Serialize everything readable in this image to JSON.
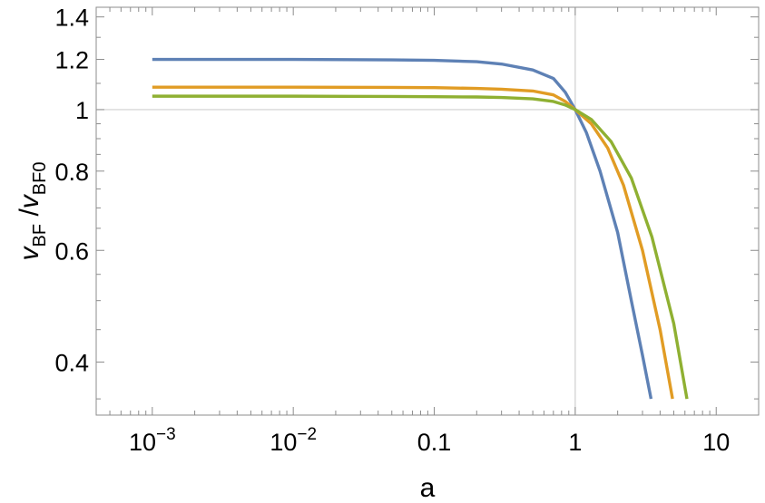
{
  "chart_data": {
    "type": "line",
    "x_scale": "log",
    "y_scale": "log",
    "xlabel": "a",
    "ylabel": {
      "main1": "v",
      "sub1": "BF",
      "sep": " /",
      "main2": "v",
      "sub2": "BF0"
    },
    "xlim": [
      0.0004,
      20
    ],
    "ylim": [
      0.33,
      1.45
    ],
    "x_ticks": [
      {
        "value": 0.001,
        "label": "10",
        "exp": "−3"
      },
      {
        "value": 0.01,
        "label": "10",
        "exp": "−2"
      },
      {
        "value": 0.1,
        "label": "0.1",
        "exp": ""
      },
      {
        "value": 1,
        "label": "1",
        "exp": ""
      },
      {
        "value": 10,
        "label": "10",
        "exp": ""
      }
    ],
    "y_ticks": [
      {
        "value": 0.4,
        "label": "0.4"
      },
      {
        "value": 0.6,
        "label": "0.6"
      },
      {
        "value": 0.8,
        "label": "0.8"
      },
      {
        "value": 1,
        "label": "1"
      },
      {
        "value": 1.2,
        "label": "1.2"
      },
      {
        "value": 1.4,
        "label": "1.4"
      }
    ],
    "gridlines": {
      "x": 1,
      "y": 1
    },
    "series": [
      {
        "color": "#5e81b5",
        "x": [
          0.001,
          0.01,
          0.05,
          0.1,
          0.2,
          0.3,
          0.5,
          0.7,
          0.85,
          1.0,
          1.2,
          1.5,
          2.0,
          2.5,
          3.0,
          3.45
        ],
        "y": [
          1.2,
          1.2,
          1.198,
          1.196,
          1.19,
          1.18,
          1.155,
          1.12,
          1.065,
          1.0,
          0.92,
          0.8,
          0.64,
          0.5,
          0.41,
          0.35
        ]
      },
      {
        "color": "#e19c24",
        "x": [
          0.001,
          0.01,
          0.05,
          0.1,
          0.2,
          0.3,
          0.5,
          0.7,
          0.85,
          1.0,
          1.3,
          1.7,
          2.2,
          3.0,
          4.0,
          4.9
        ],
        "y": [
          1.085,
          1.085,
          1.084,
          1.083,
          1.08,
          1.077,
          1.07,
          1.055,
          1.03,
          1.0,
          0.95,
          0.87,
          0.76,
          0.6,
          0.45,
          0.35
        ]
      },
      {
        "color": "#8fb032",
        "x": [
          0.001,
          0.01,
          0.05,
          0.1,
          0.2,
          0.3,
          0.5,
          0.7,
          0.85,
          1.0,
          1.3,
          1.8,
          2.5,
          3.5,
          5.0,
          6.2
        ],
        "y": [
          1.05,
          1.05,
          1.049,
          1.048,
          1.047,
          1.045,
          1.04,
          1.03,
          1.017,
          1.0,
          0.965,
          0.89,
          0.78,
          0.63,
          0.46,
          0.35
        ]
      }
    ]
  }
}
